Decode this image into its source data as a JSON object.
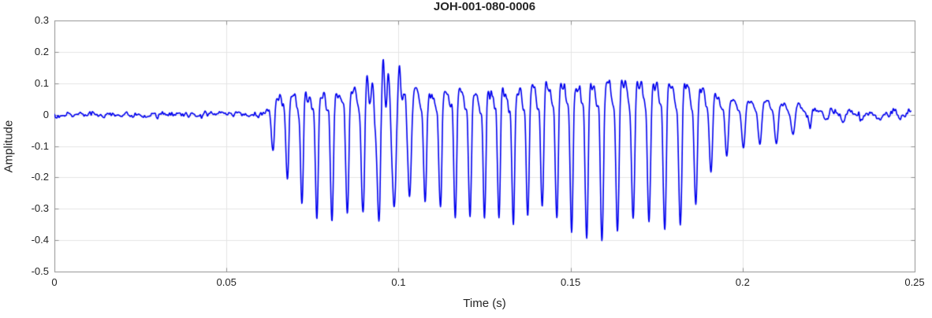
{
  "chart_data": {
    "type": "line",
    "title": "JOH-001-080-0006",
    "xlabel": "Time (s)",
    "ylabel": "Amplitude",
    "xlim": [
      0,
      0.25
    ],
    "ylim": [
      -0.5,
      0.3
    ],
    "xticks": [
      0,
      0.05,
      0.1,
      0.15,
      0.2,
      0.25
    ],
    "xtick_labels": [
      "0",
      "0.05",
      "0.1",
      "0.15",
      "0.2",
      "0.25"
    ],
    "yticks": [
      0.3,
      0.2,
      0.1,
      0,
      -0.1,
      -0.2,
      -0.3,
      -0.4,
      -0.5
    ],
    "ytick_labels": [
      "0.3",
      "0.2",
      "0.1",
      "0",
      "-0.1",
      "-0.2",
      "-0.3",
      "-0.4",
      "-0.5"
    ],
    "grid": true,
    "legend": null,
    "line_color": "#0000EE",
    "axis_color": "#8f8f8f",
    "grid_color": "#e4e4e4",
    "text_color": "#242424",
    "series": [
      {
        "name": "waveform",
        "signal_start_s": 0.0615,
        "signal_end_s": 0.2489,
        "carrier_hz": [
          [
            0,
            232
          ],
          [
            0.19,
            228
          ],
          [
            0.198,
            200
          ],
          [
            0.249,
            192
          ]
        ],
        "envelope": [
          [
            0,
            0,
            0
          ],
          [
            0.0612,
            0,
            0
          ],
          [
            0.0618,
            0.04,
            -0.04
          ],
          [
            0.0632,
            0.07,
            -0.12
          ],
          [
            0.0648,
            0.1,
            -0.17
          ],
          [
            0.068,
            0.12,
            -0.21
          ],
          [
            0.072,
            0.13,
            -0.28
          ],
          [
            0.077,
            0.13,
            -0.33
          ],
          [
            0.082,
            0.15,
            -0.33
          ],
          [
            0.087,
            0.16,
            -0.3
          ],
          [
            0.092,
            0.18,
            -0.33
          ],
          [
            0.096,
            0.24,
            -0.41
          ],
          [
            0.1,
            0.21,
            -0.32
          ],
          [
            0.104,
            0.19,
            -0.26
          ],
          [
            0.109,
            0.15,
            -0.28
          ],
          [
            0.114,
            0.15,
            -0.31
          ],
          [
            0.119,
            0.16,
            -0.33
          ],
          [
            0.125,
            0.15,
            -0.34
          ],
          [
            0.131,
            0.16,
            -0.35
          ],
          [
            0.137,
            0.18,
            -0.31
          ],
          [
            0.142,
            0.21,
            -0.3
          ],
          [
            0.147,
            0.18,
            -0.34
          ],
          [
            0.152,
            0.2,
            -0.38
          ],
          [
            0.157,
            0.2,
            -0.41
          ],
          [
            0.162,
            0.22,
            -0.39
          ],
          [
            0.167,
            0.22,
            -0.34
          ],
          [
            0.172,
            0.23,
            -0.33
          ],
          [
            0.177,
            0.22,
            -0.36
          ],
          [
            0.181,
            0.21,
            -0.37
          ],
          [
            0.185,
            0.19,
            -0.31
          ],
          [
            0.189,
            0.16,
            -0.24
          ],
          [
            0.193,
            0.12,
            -0.14
          ],
          [
            0.198,
            0.1,
            -0.11
          ],
          [
            0.204,
            0.1,
            -0.1
          ],
          [
            0.21,
            0.09,
            -0.09
          ],
          [
            0.215,
            0.08,
            -0.07
          ],
          [
            0.219,
            0.05,
            -0.05
          ],
          [
            0.224,
            0.03,
            -0.025
          ],
          [
            0.23,
            0.015,
            -0.015
          ],
          [
            0.24,
            0.01,
            -0.01
          ],
          [
            0.249,
            0.012,
            -0.012
          ]
        ],
        "hf_component_hz": 640,
        "hf_amplitude": [
          [
            0,
            0
          ],
          [
            0.088,
            0
          ],
          [
            0.092,
            0.05
          ],
          [
            0.096,
            0.08
          ],
          [
            0.101,
            0.06
          ],
          [
            0.106,
            0
          ],
          [
            0.249,
            0
          ]
        ],
        "noise_amplitude": [
          [
            0,
            0.014
          ],
          [
            0.04,
            0.013
          ],
          [
            0.058,
            0.012
          ],
          [
            0.063,
            0.02
          ],
          [
            0.09,
            0.025
          ],
          [
            0.19,
            0.02
          ],
          [
            0.196,
            0.008
          ],
          [
            0.214,
            0.01
          ],
          [
            0.218,
            0.022
          ],
          [
            0.235,
            0.022
          ],
          [
            0.249,
            0.02
          ]
        ],
        "noise_seed": 7
      }
    ]
  }
}
